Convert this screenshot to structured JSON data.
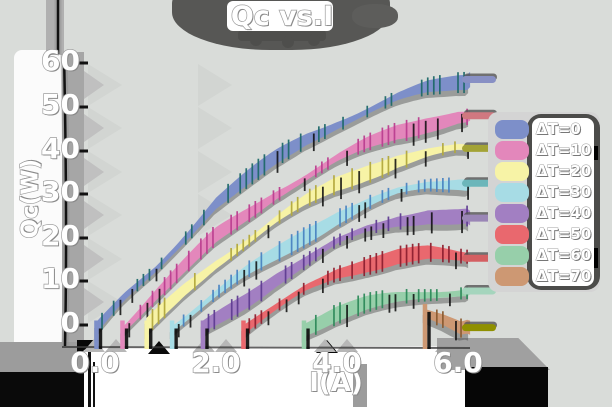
{
  "title": "Qc vs.I",
  "axes": {
    "x_label": "I(A)",
    "y_label": "Qc(W)",
    "x_ticks": [
      "0.0",
      "2.0",
      "4.0",
      "6.0"
    ],
    "y_ticks": [
      "0",
      "10",
      "20",
      "30",
      "40",
      "50",
      "60"
    ]
  },
  "legend": {
    "items": [
      {
        "label": "ΔT=0",
        "color": "#7d8fc9"
      },
      {
        "label": "ΔT=10",
        "color": "#e387bb"
      },
      {
        "label": "ΔT=20",
        "color": "#f7f3a6"
      },
      {
        "label": "ΔT=30",
        "color": "#a7dce5"
      },
      {
        "label": "ΔT=40",
        "color": "#a27fc2"
      },
      {
        "label": "ΔT=50",
        "color": "#e9686e"
      },
      {
        "label": "ΔT=60",
        "color": "#97cfaa"
      },
      {
        "label": "ΔT=70",
        "color": "#cd9873"
      }
    ]
  },
  "colors": {
    "background": "#d9dcd9",
    "text": "#ffffff",
    "text_outline": "#9e9e9e",
    "shadow_dark": "#3d3d3d",
    "panel_white": "#ffffff"
  },
  "chart_data": {
    "type": "line",
    "title": "Qc vs.I",
    "xlabel": "I(A)",
    "ylabel": "Qc(W)",
    "xlim": [
      0,
      6.6
    ],
    "ylim": [
      0,
      60
    ],
    "x_tick_values": [
      0,
      2,
      4,
      6
    ],
    "y_tick_values": [
      0,
      10,
      20,
      30,
      40,
      50,
      60
    ],
    "grid": false,
    "legend_position": "right",
    "style": "xkcd-like thick hatched bands with drop shadows",
    "series": [
      {
        "name": "ΔT=0",
        "color": "#7d8fc9",
        "tick_color": "#1f6a6a",
        "stub_color": "#8890c4",
        "points": [
          [
            0.02,
            -0.8
          ],
          [
            0.5,
            6.5
          ],
          [
            1,
            13
          ],
          [
            1.5,
            20.5
          ],
          [
            2,
            28
          ],
          [
            2.5,
            33
          ],
          [
            3,
            38
          ],
          [
            3.5,
            42.5
          ],
          [
            4,
            46
          ],
          [
            4.5,
            49
          ],
          [
            5,
            52
          ],
          [
            5.5,
            54.5
          ],
          [
            6,
            56
          ],
          [
            6.2,
            56.3
          ]
        ]
      },
      {
        "name": "ΔT=10",
        "color": "#e387bb",
        "tick_color": "#bb3f90",
        "stub_color": "#d07880",
        "points": [
          [
            0.45,
            -0.8
          ],
          [
            1,
            7
          ],
          [
            1.5,
            13.5
          ],
          [
            2,
            20
          ],
          [
            2.5,
            25
          ],
          [
            3,
            30
          ],
          [
            3.5,
            34
          ],
          [
            4,
            38
          ],
          [
            4.5,
            41.5
          ],
          [
            5,
            44.5
          ],
          [
            5.5,
            46.5
          ],
          [
            6,
            48
          ],
          [
            6.2,
            48
          ]
        ]
      },
      {
        "name": "ΔT=20",
        "color": "#f7f3a6",
        "tick_color": "#b3a93c",
        "stub_color": "#a3a336",
        "points": [
          [
            0.85,
            -0.8
          ],
          [
            1.5,
            8
          ],
          [
            2,
            14
          ],
          [
            2.5,
            19
          ],
          [
            3,
            24
          ],
          [
            3.5,
            28.5
          ],
          [
            4,
            32.5
          ],
          [
            4.5,
            35.5
          ],
          [
            5,
            38
          ],
          [
            5.5,
            39.5
          ],
          [
            6,
            40.5
          ],
          [
            6.2,
            40.5
          ]
        ]
      },
      {
        "name": "ΔT=30",
        "color": "#a7dce5",
        "tick_color": "#4a84c2",
        "stub_color": "#6cb6ba",
        "points": [
          [
            1.27,
            -0.8
          ],
          [
            2,
            7
          ],
          [
            2.5,
            12
          ],
          [
            3,
            16.5
          ],
          [
            3.5,
            21
          ],
          [
            4,
            25
          ],
          [
            4.5,
            28
          ],
          [
            5,
            30.5
          ],
          [
            5.5,
            32
          ],
          [
            6,
            32.5
          ],
          [
            6.2,
            32.5
          ]
        ]
      },
      {
        "name": "ΔT=40",
        "color": "#a27fc2",
        "tick_color": "#5f3d92",
        "stub_color": "#9a86b6",
        "points": [
          [
            1.78,
            -0.8
          ],
          [
            2.5,
            6
          ],
          [
            3,
            11
          ],
          [
            3.5,
            15
          ],
          [
            4,
            19
          ],
          [
            4.5,
            22
          ],
          [
            5,
            24
          ],
          [
            5.5,
            25
          ],
          [
            6,
            24.5
          ],
          [
            6.2,
            24.5
          ]
        ]
      },
      {
        "name": "ΔT=50",
        "color": "#e9686e",
        "tick_color": "#8f2030",
        "stub_color": "#d45f62",
        "points": [
          [
            2.45,
            -0.8
          ],
          [
            3,
            4
          ],
          [
            3.5,
            8.5
          ],
          [
            4,
            12
          ],
          [
            4.5,
            14
          ],
          [
            5,
            15.5
          ],
          [
            5.5,
            16
          ],
          [
            6,
            15.3
          ],
          [
            6.2,
            15.3
          ]
        ]
      },
      {
        "name": "ΔT=60",
        "color": "#97cfaa",
        "tick_color": "#2e8a5a",
        "stub_color": "#a5d5bd",
        "points": [
          [
            3.45,
            -0.8
          ],
          [
            4,
            2.5
          ],
          [
            4.5,
            4.5
          ],
          [
            5,
            5.8
          ],
          [
            5.5,
            6.8
          ],
          [
            6,
            7.6
          ],
          [
            6.2,
            7.8
          ]
        ]
      },
      {
        "name": "ΔT=70",
        "color": "#cd9873",
        "tick_color": "#8a5a30",
        "stub_color": "#8f9000",
        "points": [
          [
            5.45,
            3
          ],
          [
            5.75,
            1.2
          ],
          [
            6.05,
            -1
          ],
          [
            6.2,
            -0.6
          ]
        ]
      }
    ]
  }
}
